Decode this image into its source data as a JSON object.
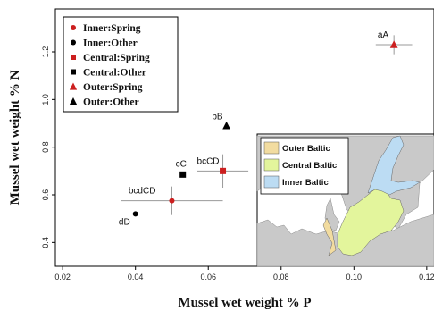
{
  "chart_data": {
    "type": "scatter",
    "xlabel": "Mussel wet weight % P",
    "ylabel": "Mussel wet weight % N",
    "xlim": [
      0.018,
      0.122
    ],
    "ylim": [
      0.3,
      1.38
    ],
    "xticks": [
      0.02,
      0.04,
      0.06,
      0.08,
      0.1,
      0.12
    ],
    "xtick_labels": [
      "0.02",
      "0.04",
      "0.06",
      "0.08",
      "0.10",
      "0.12"
    ],
    "yticks": [
      0.4,
      0.6,
      0.8,
      1.0,
      1.2
    ],
    "ytick_labels": [
      "0.4",
      "0.6",
      "0.8",
      "1.0",
      "1.2"
    ],
    "grid": false,
    "legend_position": "top-left",
    "legend": [
      {
        "label": "Inner:Spring",
        "color": "#cc1f1f",
        "marker": "circle"
      },
      {
        "label": "Inner:Other",
        "color": "#000000",
        "marker": "circle"
      },
      {
        "label": "Central:Spring",
        "color": "#cc1f1f",
        "marker": "square"
      },
      {
        "label": "Central:Other",
        "color": "#000000",
        "marker": "square"
      },
      {
        "label": "Outer:Spring",
        "color": "#cc1f1f",
        "marker": "triangle"
      },
      {
        "label": "Outer:Other",
        "color": "#000000",
        "marker": "triangle"
      }
    ],
    "points": [
      {
        "series": "Inner:Spring",
        "x": 0.05,
        "y": 0.575,
        "xerr": 0.014,
        "yerr": 0.06,
        "label": "bcdCD",
        "color": "#cc1f1f",
        "marker": "circle"
      },
      {
        "series": "Inner:Other",
        "x": 0.04,
        "y": 0.52,
        "xerr": 0.0,
        "yerr": 0.01,
        "label": "dD",
        "color": "#000000",
        "marker": "circle"
      },
      {
        "series": "Central:Spring",
        "x": 0.064,
        "y": 0.7,
        "xerr": 0.007,
        "yerr": 0.07,
        "label": "bcCD",
        "color": "#cc1f1f",
        "marker": "square"
      },
      {
        "series": "Central:Other",
        "x": 0.053,
        "y": 0.685,
        "xerr": 0.0,
        "yerr": 0.0,
        "label": "cC",
        "color": "#000000",
        "marker": "square"
      },
      {
        "series": "Outer:Spring",
        "x": 0.111,
        "y": 1.23,
        "xerr": 0.005,
        "yerr": 0.04,
        "label": "aA",
        "color": "#cc1f1f",
        "marker": "triangle"
      },
      {
        "series": "Outer:Other",
        "x": 0.065,
        "y": 0.89,
        "xerr": 0.0,
        "yerr": 0.0,
        "label": "bB",
        "color": "#000000",
        "marker": "triangle"
      }
    ]
  },
  "inset_map": {
    "legend": [
      {
        "label": "Outer Baltic",
        "color": "#f2dca0"
      },
      {
        "label": "Central Baltic",
        "color": "#e3f59c"
      },
      {
        "label": "Inner Baltic",
        "color": "#bcdcf3"
      }
    ],
    "land_color": "#c9c9c9",
    "sea_color": "#ffffff"
  }
}
